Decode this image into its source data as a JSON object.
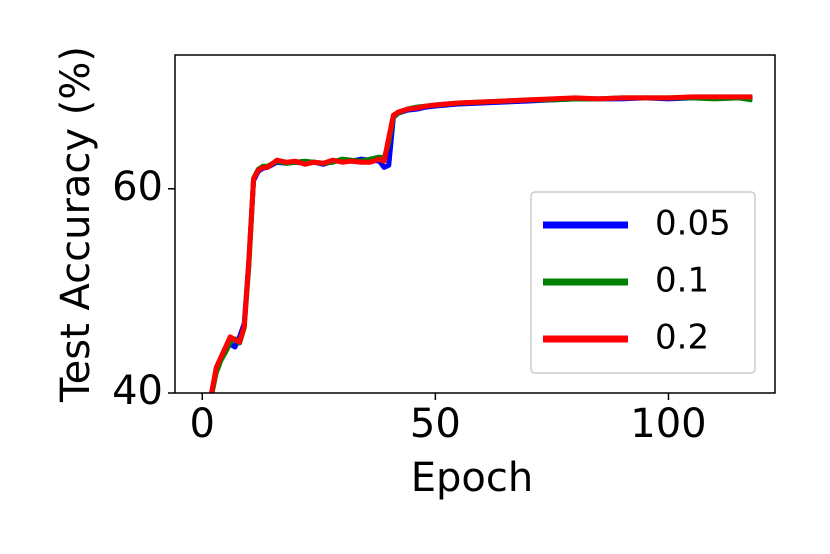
{
  "chart_data": {
    "type": "line",
    "xlabel": "Epoch",
    "ylabel": "Test Accuracy (%)",
    "x": [
      2,
      3,
      4,
      5,
      6,
      7,
      8,
      9,
      10,
      11,
      12,
      13,
      14,
      16,
      18,
      20,
      22,
      24,
      26,
      28,
      30,
      32,
      34,
      36,
      38,
      39,
      40,
      41,
      42,
      44,
      46,
      48,
      50,
      55,
      60,
      65,
      70,
      75,
      80,
      85,
      90,
      95,
      100,
      105,
      110,
      115,
      118
    ],
    "series": [
      {
        "name": "0.05",
        "color": "#0000ff",
        "values": [
          40,
          42.3,
          43.3,
          44.2,
          44.8,
          44.5,
          45.5,
          46.8,
          53,
          60.8,
          61.7,
          62,
          62.1,
          62.6,
          62.5,
          62.6,
          62.5,
          62.6,
          62.4,
          62.7,
          62.8,
          62.7,
          62.9,
          62.8,
          62.7,
          62.1,
          62.3,
          67,
          67.4,
          67.7,
          67.8,
          68,
          68.1,
          68.3,
          68.4,
          68.5,
          68.6,
          68.7,
          68.8,
          68.8,
          68.8,
          68.9,
          68.8,
          68.9,
          68.9,
          68.9,
          68.8
        ]
      },
      {
        "name": "0.1",
        "color": "#008000",
        "values": [
          39.8,
          42,
          43.2,
          44,
          45,
          45.3,
          44.9,
          46.4,
          52.5,
          61,
          61.9,
          62.2,
          62.2,
          62.7,
          62.5,
          62.6,
          62.7,
          62.6,
          62.5,
          62.6,
          62.9,
          62.8,
          62.7,
          62.9,
          63.1,
          63,
          64.5,
          67.1,
          67.4,
          67.8,
          68,
          68.1,
          68.2,
          68.4,
          68.5,
          68.6,
          68.7,
          68.7,
          68.8,
          68.8,
          68.9,
          68.9,
          68.9,
          68.9,
          68.8,
          68.9,
          68.7
        ]
      },
      {
        "name": "0.2",
        "color": "#ff0000",
        "values": [
          40,
          42.5,
          43.5,
          44.5,
          45.5,
          45.2,
          45,
          46.5,
          53,
          61,
          61.8,
          62.1,
          62.1,
          62.8,
          62.6,
          62.7,
          62.4,
          62.6,
          62.5,
          62.8,
          62.6,
          62.7,
          62.6,
          62.6,
          62.9,
          62.7,
          65,
          67.2,
          67.5,
          67.8,
          67.9,
          68.1,
          68.2,
          68.4,
          68.5,
          68.6,
          68.7,
          68.8,
          68.9,
          68.8,
          68.9,
          68.9,
          68.9,
          69,
          69,
          69,
          69
        ]
      }
    ],
    "xlim": [
      -5.85,
      122.85
    ],
    "ylim": [
      40,
      73.1
    ],
    "xticks": [
      0,
      50,
      100
    ],
    "yticks": [
      40,
      60
    ],
    "legend": "lower right"
  }
}
